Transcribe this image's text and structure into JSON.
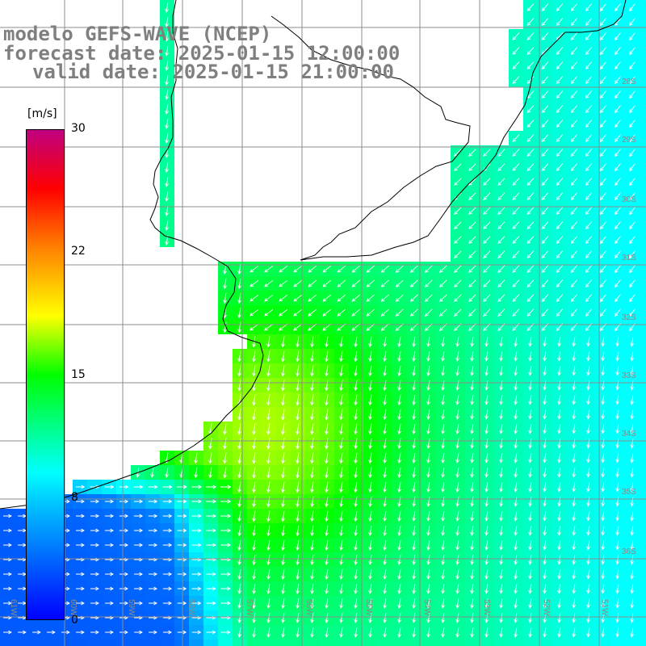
{
  "title": {
    "line1": "modelo GEFS-WAVE (NCEP)",
    "line2": "forecast date: 2025-01-15 12:00:00",
    "line3": "valid date: 2025-01-15 21:00:00"
  },
  "colorbar": {
    "unit": "[m/s]",
    "ticks": [
      "30",
      "22",
      "15",
      "8",
      "0"
    ],
    "colors": [
      "#0000ff",
      "#00c8ff",
      "#00ffff",
      "#00ff00",
      "#ffff00",
      "#ff8000",
      "#ff0000",
      "#c00080"
    ]
  },
  "map": {
    "lon_labels": [
      "61W",
      "60W",
      "59W",
      "58W",
      "57W",
      "56W",
      "55W",
      "54W",
      "53W",
      "52W",
      "51W"
    ],
    "lat_labels": [
      "28S",
      "29S",
      "30S",
      "31S",
      "32S",
      "33S",
      "34S",
      "35S",
      "36S"
    ],
    "land_color": "#ffffff",
    "coast_color": "#000000",
    "grid_color": "#8c8c8c",
    "arrow_color": "#ffffff"
  }
}
